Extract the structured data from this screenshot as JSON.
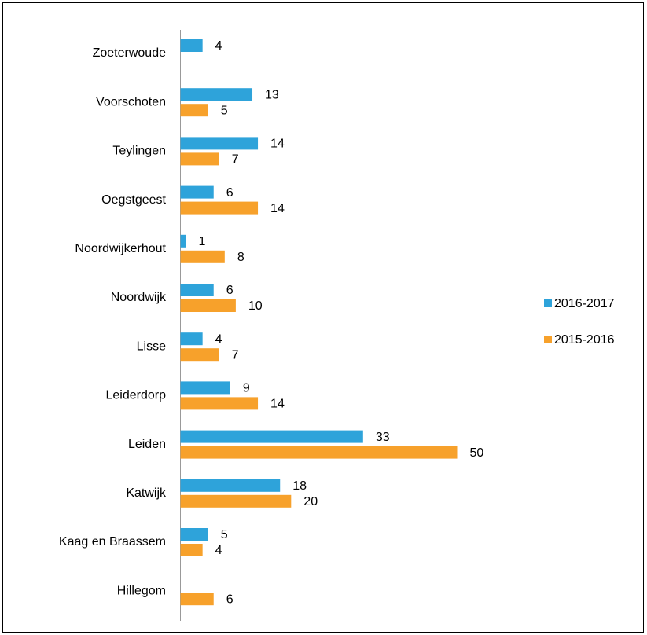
{
  "chart_data": {
    "type": "bar",
    "orientation": "horizontal",
    "categories": [
      "Zoeterwoude",
      "Voorschoten",
      "Teylingen",
      "Oegstgeest",
      "Noordwijkerhout",
      "Noordwijk",
      "Lisse",
      "Leiderdorp",
      "Leiden",
      "Katwijk",
      "Kaag en Braassem",
      "Hillegom"
    ],
    "series": [
      {
        "name": "2016-2017",
        "color": "#2ea3da",
        "values": [
          4,
          13,
          14,
          6,
          1,
          6,
          4,
          9,
          33,
          18,
          5,
          null
        ]
      },
      {
        "name": "2015-2016",
        "color": "#f7a12b",
        "values": [
          null,
          5,
          7,
          14,
          8,
          10,
          7,
          14,
          50,
          20,
          4,
          6
        ]
      }
    ],
    "legend": "right"
  }
}
